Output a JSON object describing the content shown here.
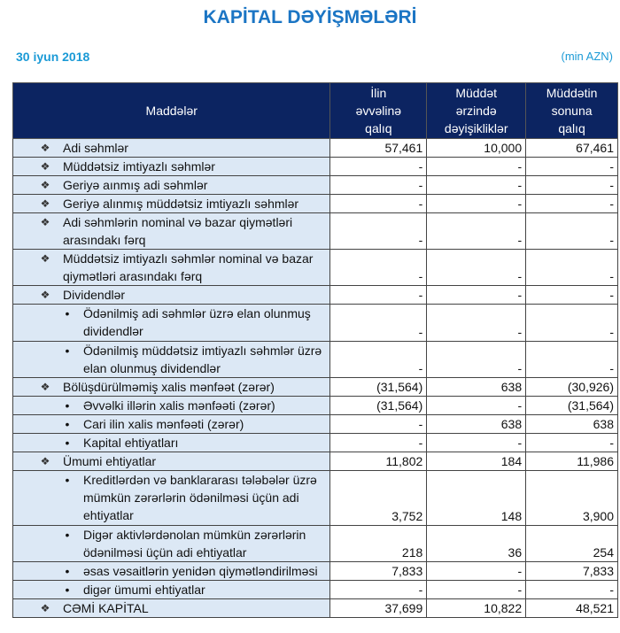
{
  "title": "KAPİTAL DƏYİŞMƏLƏRİ",
  "date": "30 iyun 2018",
  "unit": "(min AZN)",
  "headers": [
    "Maddələr",
    "İlin\nəvvəlinə\nqalıq",
    "Müddət\nərzində\ndəyişikliklər",
    "Müddətin\nsonuna\nqalıq"
  ],
  "rows": [
    {
      "level": 1,
      "label": "Adi səhmlər",
      "lines": 1,
      "values": [
        "57,461",
        "10,000",
        "67,461"
      ]
    },
    {
      "level": 1,
      "label": "Müddətsiz imtiyazlı səhmlər",
      "lines": 1,
      "values": [
        "-",
        "-",
        "-"
      ]
    },
    {
      "level": 1,
      "label": "Geriyə aınmış adi səhmlər",
      "lines": 1,
      "values": [
        "-",
        "-",
        "-"
      ]
    },
    {
      "level": 1,
      "label": "Geriyə alınmış müddətsiz imtiyazlı səhmlər",
      "lines": 1,
      "values": [
        "-",
        "-",
        "-"
      ]
    },
    {
      "level": 1,
      "label": "Adi səhmlərin nominal və bazar qiymətləri arasındakı fərq",
      "lines": 2,
      "values": [
        "-",
        "-",
        "-"
      ]
    },
    {
      "level": 1,
      "label": "Müddətsiz imtiyazlı səhmlər nominal və bazar qiymətləri arasındakı fərq",
      "lines": 2,
      "values": [
        "-",
        "-",
        "-"
      ]
    },
    {
      "level": 1,
      "label": "Dividendlər",
      "lines": 1,
      "values": [
        "-",
        "-",
        "-"
      ]
    },
    {
      "level": 2,
      "label": "Ödənilmiş adi səhmlər üzrə elan olunmuş dividendlər",
      "lines": 2,
      "values": [
        "-",
        "-",
        "-"
      ]
    },
    {
      "level": 2,
      "label": "Ödənilmiş müddətsiz imtiyazlı səhmlər üzrə elan olunmuş dividendlər",
      "lines": 2,
      "values": [
        "-",
        "-",
        "-"
      ]
    },
    {
      "level": 1,
      "label": "Bölüşdürülməmiş xalis mənfəət (zərər)",
      "lines": 1,
      "values": [
        "(31,564)",
        "638",
        "(30,926)"
      ]
    },
    {
      "level": 2,
      "label": "Əvvəlki illərin xalis mənfəəti (zərər)",
      "lines": 1,
      "values": [
        "(31,564)",
        "-",
        "(31,564)"
      ]
    },
    {
      "level": 2,
      "label": "Cari ilin xalis mənfəəti (zərər)",
      "lines": 1,
      "values": [
        "-",
        "638",
        "638"
      ]
    },
    {
      "level": 2,
      "label": "Kapital ehtiyatları",
      "lines": 1,
      "values": [
        "-",
        "-",
        "-"
      ]
    },
    {
      "level": 1,
      "label": "Ümumi ehtiyatlar",
      "lines": 1,
      "values": [
        "11,802",
        "184",
        "11,986"
      ]
    },
    {
      "level": 2,
      "label": "Kreditlərdən və banklararası tələbələr üzrə mümkün zərərlərin ödənilməsi üçün adi ehtiyatlar",
      "lines": 3,
      "values": [
        "3,752",
        "148",
        "3,900"
      ]
    },
    {
      "level": 2,
      "label": "Digər aktivlərdənolan mümkün zərərlərin ödənilməsi üçün adi ehtiyatlar",
      "lines": 2,
      "values": [
        "218",
        "36",
        "254"
      ]
    },
    {
      "level": 2,
      "label": "əsas vəsaitlərin yenidən qiymətləndirilməsi",
      "lines": 1,
      "values": [
        "7,833",
        "-",
        "7,833"
      ]
    },
    {
      "level": 2,
      "label": "digər ümumi ehtiyatlar",
      "lines": 1,
      "values": [
        "-",
        "-",
        "-"
      ]
    },
    {
      "level": 1,
      "label": "CƏMİ KAPİTAL",
      "lines": 1,
      "values": [
        "37,699",
        "10,822",
        "48,521"
      ]
    }
  ],
  "colors": {
    "title": "#1b75c4",
    "date": "#1b9ad6",
    "header_bg": "#0c2461",
    "label_bg": "#dce8f5"
  }
}
